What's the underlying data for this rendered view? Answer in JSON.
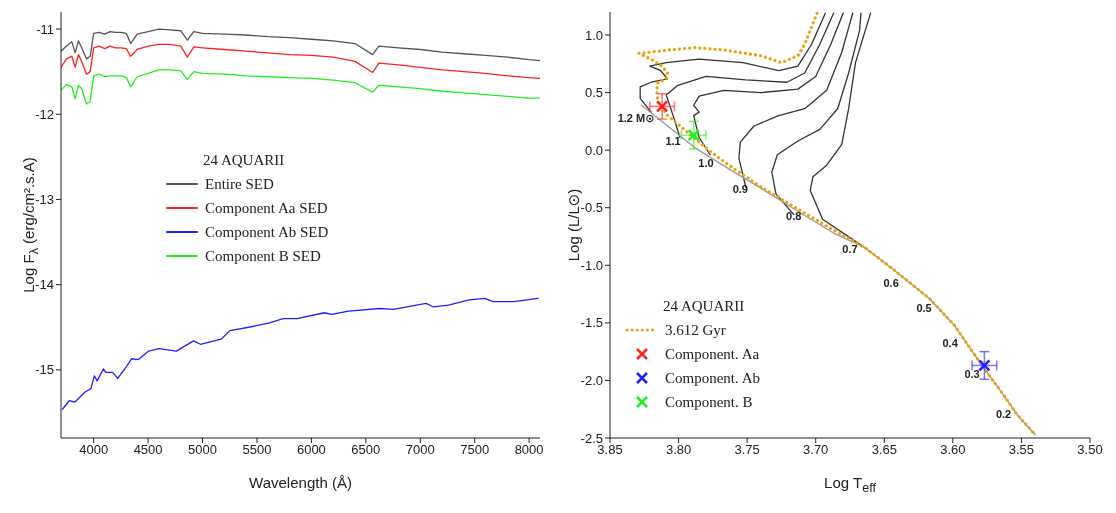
{
  "chart_data": [
    {
      "type": "line",
      "xlabel": "Wavelength (Å)",
      "ylabel": "Log F$_{λ}$ (erg/cm².s.A)",
      "legend_title": "24 AQUARII",
      "legend": "left",
      "xlim": [
        3700,
        8100
      ],
      "ylim": [
        -15.8,
        -10.8
      ],
      "xticks": [
        4000,
        4500,
        5000,
        5500,
        6000,
        6500,
        7000,
        7500,
        8000
      ],
      "yticks": [
        -15,
        -14,
        -13,
        -12,
        -11
      ],
      "x": [
        3700,
        3750,
        3800,
        3830,
        3860,
        3890,
        3934,
        3968,
        4000,
        4050,
        4102,
        4150,
        4200,
        4250,
        4300,
        4340,
        4400,
        4500,
        4600,
        4700,
        4800,
        4861,
        4920,
        5000,
        5200,
        5400,
        5600,
        5800,
        6000,
        6200,
        6400,
        6563,
        6620,
        6800,
        7000,
        7200,
        7400,
        7600,
        7800,
        8000,
        8100
      ],
      "series": [
        {
          "name": "Entire SED",
          "color": "#555555",
          "values": [
            -11.26,
            -11.2,
            -11.15,
            -11.28,
            -11.14,
            -11.22,
            -11.35,
            -11.32,
            -11.05,
            -11.04,
            -11.06,
            -11.03,
            -11.04,
            -11.04,
            -11.05,
            -11.17,
            -11.06,
            -11.03,
            -11.0,
            -11.01,
            -11.02,
            -11.13,
            -11.03,
            -11.05,
            -11.06,
            -11.07,
            -11.09,
            -11.1,
            -11.12,
            -11.14,
            -11.17,
            -11.3,
            -11.2,
            -11.22,
            -11.24,
            -11.27,
            -11.29,
            -11.31,
            -11.33,
            -11.36,
            -11.37
          ]
        },
        {
          "name": "Component Aa SED",
          "color": "#ff2020",
          "values": [
            -11.45,
            -11.35,
            -11.32,
            -11.45,
            -11.3,
            -11.38,
            -11.53,
            -11.5,
            -11.22,
            -11.2,
            -11.23,
            -11.2,
            -11.22,
            -11.22,
            -11.23,
            -11.32,
            -11.24,
            -11.2,
            -11.18,
            -11.18,
            -11.2,
            -11.33,
            -11.21,
            -11.22,
            -11.24,
            -11.26,
            -11.28,
            -11.3,
            -11.31,
            -11.33,
            -11.38,
            -11.51,
            -11.4,
            -11.42,
            -11.45,
            -11.48,
            -11.5,
            -11.52,
            -11.55,
            -11.57,
            -11.58
          ]
        },
        {
          "name": "Component Ab SED",
          "color": "#2020ff",
          "x": [
            3715,
            3778,
            3826,
            3921,
            3975,
            4006,
            4032,
            4089,
            4111,
            4174,
            4221,
            4285,
            4348,
            4411,
            4506,
            4601,
            4759,
            4918,
            4981,
            5171,
            5250,
            5424,
            5614,
            5741,
            5867,
            6120,
            6184,
            6342,
            6627,
            6753,
            7054,
            7117,
            7259,
            7449,
            7592,
            7671,
            7861,
            8082
          ],
          "values": [
            -15.46,
            -15.36,
            -15.38,
            -15.26,
            -15.22,
            -15.07,
            -15.13,
            -14.99,
            -15.03,
            -15.03,
            -15.1,
            -14.99,
            -14.87,
            -14.88,
            -14.78,
            -14.75,
            -14.78,
            -14.66,
            -14.7,
            -14.64,
            -14.54,
            -14.5,
            -14.45,
            -14.4,
            -14.4,
            -14.33,
            -14.35,
            -14.31,
            -14.28,
            -14.29,
            -14.22,
            -14.26,
            -14.24,
            -14.18,
            -14.16,
            -14.2,
            -14.2,
            -14.16
          ]
        },
        {
          "name": "Component B SED",
          "color": "#20ee20",
          "values": [
            -11.72,
            -11.65,
            -11.68,
            -11.82,
            -11.66,
            -11.7,
            -11.88,
            -11.85,
            -11.55,
            -11.53,
            -11.56,
            -11.55,
            -11.55,
            -11.55,
            -11.57,
            -11.68,
            -11.56,
            -11.52,
            -11.48,
            -11.48,
            -11.49,
            -11.59,
            -11.5,
            -11.52,
            -11.53,
            -11.55,
            -11.56,
            -11.57,
            -11.58,
            -11.6,
            -11.63,
            -11.74,
            -11.66,
            -11.68,
            -11.7,
            -11.73,
            -11.75,
            -11.77,
            -11.79,
            -11.81,
            -11.81
          ]
        }
      ]
    },
    {
      "type": "line",
      "xlabel": "Log T$_{eff}$",
      "ylabel": "Log (L/L⊙)",
      "legend_title": "24 AQUARII",
      "legend": "bottom left",
      "xlim": [
        3.85,
        3.5
      ],
      "ylim": [
        -2.5,
        1.2
      ],
      "xticks": [
        {
          "value": 3.85,
          "label": "3.85"
        },
        {
          "value": 3.8,
          "label": "3.80"
        },
        {
          "value": 3.75,
          "label": "3.75"
        },
        {
          "value": 3.7,
          "label": "3.70"
        },
        {
          "value": 3.65,
          "label": "3.65"
        },
        {
          "value": 3.6,
          "label": "3.60"
        },
        {
          "value": 3.55,
          "label": "3.55"
        },
        {
          "value": 3.5,
          "label": "3.50"
        }
      ],
      "yticks": [
        {
          "value": -2.5,
          "label": "-2.5"
        },
        {
          "value": -2,
          "label": "-2.0"
        },
        {
          "value": -1.5,
          "label": "-1.5"
        },
        {
          "value": -1,
          "label": "-1.0"
        },
        {
          "value": -0.5,
          "label": "-0.5"
        },
        {
          "value": 0,
          "label": "0.0"
        },
        {
          "value": 0.5,
          "label": "0.5"
        },
        {
          "value": 1,
          "label": "1.0"
        }
      ],
      "annotations": [
        "1.2 M⊙",
        "1.1",
        "1.0",
        "0.9",
        "0.8",
        "0.7",
        "0.6",
        "0.5",
        "0.4",
        "0.3",
        "0.2"
      ],
      "series": [
        {
          "color": "#333333",
          "x": [
            3.82,
            3.828,
            3.828,
            3.82,
            3.808,
            3.813,
            3.821,
            3.809,
            3.785,
            3.753,
            3.727,
            3.713,
            3.703,
            3.693
          ],
          "values": [
            0.33,
            0.45,
            0.55,
            0.59,
            0.62,
            0.69,
            0.73,
            0.76,
            0.79,
            0.76,
            0.69,
            0.73,
            0.92,
            1.19
          ]
        },
        {
          "color": "#333333",
          "x": [
            3.799,
            3.804,
            3.809,
            3.801,
            3.78,
            3.751,
            3.721,
            3.708,
            3.697,
            3.687
          ],
          "values": [
            0.11,
            0.3,
            0.48,
            0.56,
            0.64,
            0.61,
            0.59,
            0.67,
            0.92,
            1.19
          ]
        },
        {
          "color": "#333333",
          "x": [
            3.777,
            3.785,
            3.789,
            3.785,
            3.789,
            3.785,
            3.767,
            3.74,
            3.713,
            3.7,
            3.689,
            3.68
          ],
          "values": [
            -0.04,
            0.11,
            0.3,
            0.33,
            0.39,
            0.47,
            0.52,
            0.5,
            0.53,
            0.64,
            0.92,
            1.19
          ]
        },
        {
          "color": "#333333",
          "x": [
            3.751,
            3.756,
            3.755,
            3.745,
            3.727,
            3.708,
            3.692,
            3.681,
            3.673
          ],
          "values": [
            -0.32,
            -0.07,
            0.07,
            0.21,
            0.3,
            0.36,
            0.52,
            0.85,
            1.19
          ]
        },
        {
          "color": "#333333",
          "x": [
            3.716,
            3.729,
            3.732,
            3.728,
            3.713,
            3.697,
            3.684,
            3.676,
            3.668,
            3.667
          ],
          "values": [
            -0.56,
            -0.38,
            -0.19,
            -0.04,
            0.08,
            0.18,
            0.36,
            0.67,
            1.04,
            1.19
          ]
        },
        {
          "color": "#333333",
          "x": [
            3.665,
            3.695,
            3.704,
            3.702,
            3.692,
            3.681,
            3.676,
            3.671,
            3.66
          ],
          "values": [
            -0.84,
            -0.6,
            -0.35,
            -0.23,
            -0.13,
            0.05,
            0.36,
            0.76,
            1.19
          ]
        },
        {
          "color": "#999999",
          "x": [
            3.827,
            3.808,
            3.788,
            3.761,
            3.74,
            3.713,
            3.687,
            3.665,
            3.644,
            3.617,
            3.599,
            3.588,
            3.577,
            3.564,
            3.553,
            3.54
          ],
          "values": [
            0.39,
            0.21,
            0.02,
            -0.18,
            -0.33,
            -0.53,
            -0.72,
            -0.84,
            -1.03,
            -1.29,
            -1.52,
            -1.71,
            -1.9,
            -2.11,
            -2.3,
            -2.47
          ]
        },
        {
          "name": "3.612 Gyr",
          "color": "#e8a317",
          "line_style": "dotted",
          "x": [
            3.699,
            3.708,
            3.713,
            3.725,
            3.74,
            3.767,
            3.788,
            3.807,
            3.829,
            3.82,
            3.812,
            3.808,
            3.809,
            3.815,
            3.816,
            3.815,
            3.808,
            3.799,
            3.788,
            3.777,
            3.761,
            3.74,
            3.719,
            3.692,
            3.665,
            3.644,
            3.617,
            3.599,
            3.588,
            3.577,
            3.564,
            3.553,
            3.54
          ],
          "values": [
            1.19,
            0.92,
            0.82,
            0.76,
            0.82,
            0.87,
            0.89,
            0.87,
            0.84,
            0.79,
            0.73,
            0.67,
            0.62,
            0.59,
            0.52,
            0.42,
            0.3,
            0.21,
            0.1,
            -0.01,
            -0.15,
            -0.32,
            -0.47,
            -0.66,
            -0.84,
            -1.03,
            -1.29,
            -1.52,
            -1.71,
            -1.9,
            -2.11,
            -2.3,
            -2.47
          ]
        },
        {
          "type": "scatter",
          "name": "Component. Aa",
          "color": "#ff2020",
          "marker": "cross",
          "x": [
            3.812
          ],
          "values": [
            0.38
          ],
          "errors": [
            0.11
          ],
          "xerrors": [
            0.009
          ]
        },
        {
          "type": "scatter",
          "name": "Component. Ab",
          "color": "#2020ff",
          "marker": "cross",
          "x": [
            3.577
          ],
          "values": [
            -1.87
          ],
          "errors": [
            0.12
          ],
          "xerrors": [
            0.009
          ]
        },
        {
          "type": "scatter",
          "name": "Component. B",
          "color": "#20ee20",
          "marker": "cross",
          "x": [
            3.789
          ],
          "values": [
            0.13
          ],
          "errors": [
            0.12
          ],
          "xerrors": [
            0.009
          ]
        }
      ]
    }
  ]
}
